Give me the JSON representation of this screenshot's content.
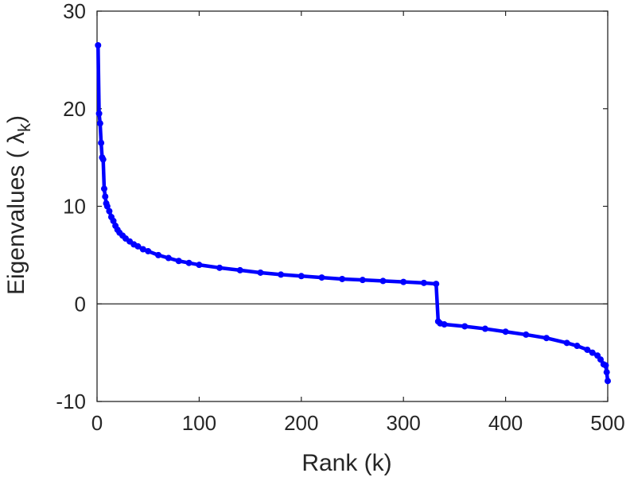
{
  "chart_data": {
    "type": "line",
    "title": "",
    "xlabel": "Rank (k)",
    "ylabel": "Eigenvalues (  λ",
    "ylabel_subscript": "k",
    "ylabel_close": ")",
    "xlim": [
      0,
      500
    ],
    "ylim": [
      -10,
      30
    ],
    "xticks": [
      0,
      100,
      200,
      300,
      400,
      500
    ],
    "yticks": [
      -10,
      0,
      10,
      20,
      30
    ],
    "zero_line": true,
    "grid": false,
    "line_color": "#0000ff",
    "series": [
      {
        "name": "",
        "x": [
          1,
          2,
          3,
          4,
          5,
          6,
          7,
          8,
          9,
          10,
          12,
          14,
          16,
          18,
          20,
          22,
          25,
          28,
          32,
          36,
          40,
          45,
          50,
          60,
          70,
          80,
          90,
          100,
          120,
          140,
          160,
          180,
          200,
          220,
          240,
          260,
          280,
          300,
          320,
          332,
          334,
          336,
          340,
          360,
          380,
          400,
          420,
          440,
          460,
          470,
          480,
          485,
          490,
          493,
          496,
          498,
          499,
          500
        ],
        "y": [
          26.5,
          19.5,
          18.5,
          16.5,
          15.0,
          14.8,
          11.8,
          11.0,
          10.3,
          10.0,
          9.5,
          8.9,
          8.5,
          8.0,
          7.6,
          7.3,
          7.0,
          6.7,
          6.4,
          6.1,
          5.9,
          5.6,
          5.4,
          5.0,
          4.7,
          4.4,
          4.2,
          4.0,
          3.7,
          3.45,
          3.2,
          3.0,
          2.85,
          2.7,
          2.55,
          2.45,
          2.35,
          2.25,
          2.15,
          2.05,
          -1.8,
          -2.0,
          -2.1,
          -2.3,
          -2.55,
          -2.85,
          -3.15,
          -3.5,
          -4.0,
          -4.3,
          -4.7,
          -5.0,
          -5.3,
          -5.7,
          -6.2,
          -6.3,
          -7.0,
          -7.9
        ]
      }
    ]
  }
}
